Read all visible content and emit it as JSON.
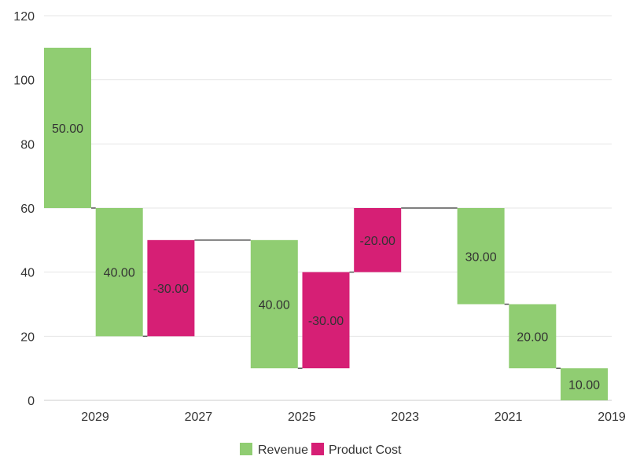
{
  "chart_data": {
    "type": "waterfall",
    "title": "",
    "xlabel": "",
    "ylabel": "",
    "ylim": [
      0,
      120
    ],
    "yticks": [
      0,
      20,
      40,
      60,
      80,
      100,
      120
    ],
    "x_tick_labels": [
      "2029",
      "2027",
      "2025",
      "2023",
      "2021",
      "2019"
    ],
    "bars": [
      {
        "series": "Revenue",
        "start": 60,
        "end": 110,
        "label": "50.00"
      },
      {
        "series": "Revenue",
        "start": 20,
        "end": 60,
        "label": "40.00"
      },
      {
        "series": "Product Cost",
        "start": 20,
        "end": 50,
        "label": "-30.00"
      },
      {
        "series": "Revenue",
        "start": 10,
        "end": 50,
        "label": "40.00"
      },
      {
        "series": "Product Cost",
        "start": 10,
        "end": 40,
        "label": "-30.00"
      },
      {
        "series": "Product Cost",
        "start": 40,
        "end": 60,
        "label": "-20.00"
      },
      {
        "series": "Revenue",
        "start": 30,
        "end": 60,
        "label": "30.00"
      },
      {
        "series": "Revenue",
        "start": 10,
        "end": 30,
        "label": "20.00"
      },
      {
        "series": "Revenue",
        "start": 0,
        "end": 10,
        "label": "10.00"
      }
    ],
    "bar_slots": [
      0,
      1,
      2,
      4,
      5,
      6,
      8,
      9,
      10
    ],
    "connectors": [
      {
        "from": 0,
        "to": 1,
        "value": 60
      },
      {
        "from": 1,
        "to": 2,
        "value": 20
      },
      {
        "from": 2,
        "to": 3,
        "value": 50
      },
      {
        "from": 3,
        "to": 4,
        "value": 10
      },
      {
        "from": 4,
        "to": 5,
        "value": 40
      },
      {
        "from": 5,
        "to": 6,
        "value": 60
      },
      {
        "from": 6,
        "to": 7,
        "value": 30
      },
      {
        "from": 7,
        "to": 8,
        "value": 10
      }
    ],
    "series": [
      {
        "name": "Revenue",
        "color": "#90cd72"
      },
      {
        "name": "Product Cost",
        "color": "#d61f75"
      }
    ],
    "legend_position": "bottom-center",
    "grid": true
  }
}
